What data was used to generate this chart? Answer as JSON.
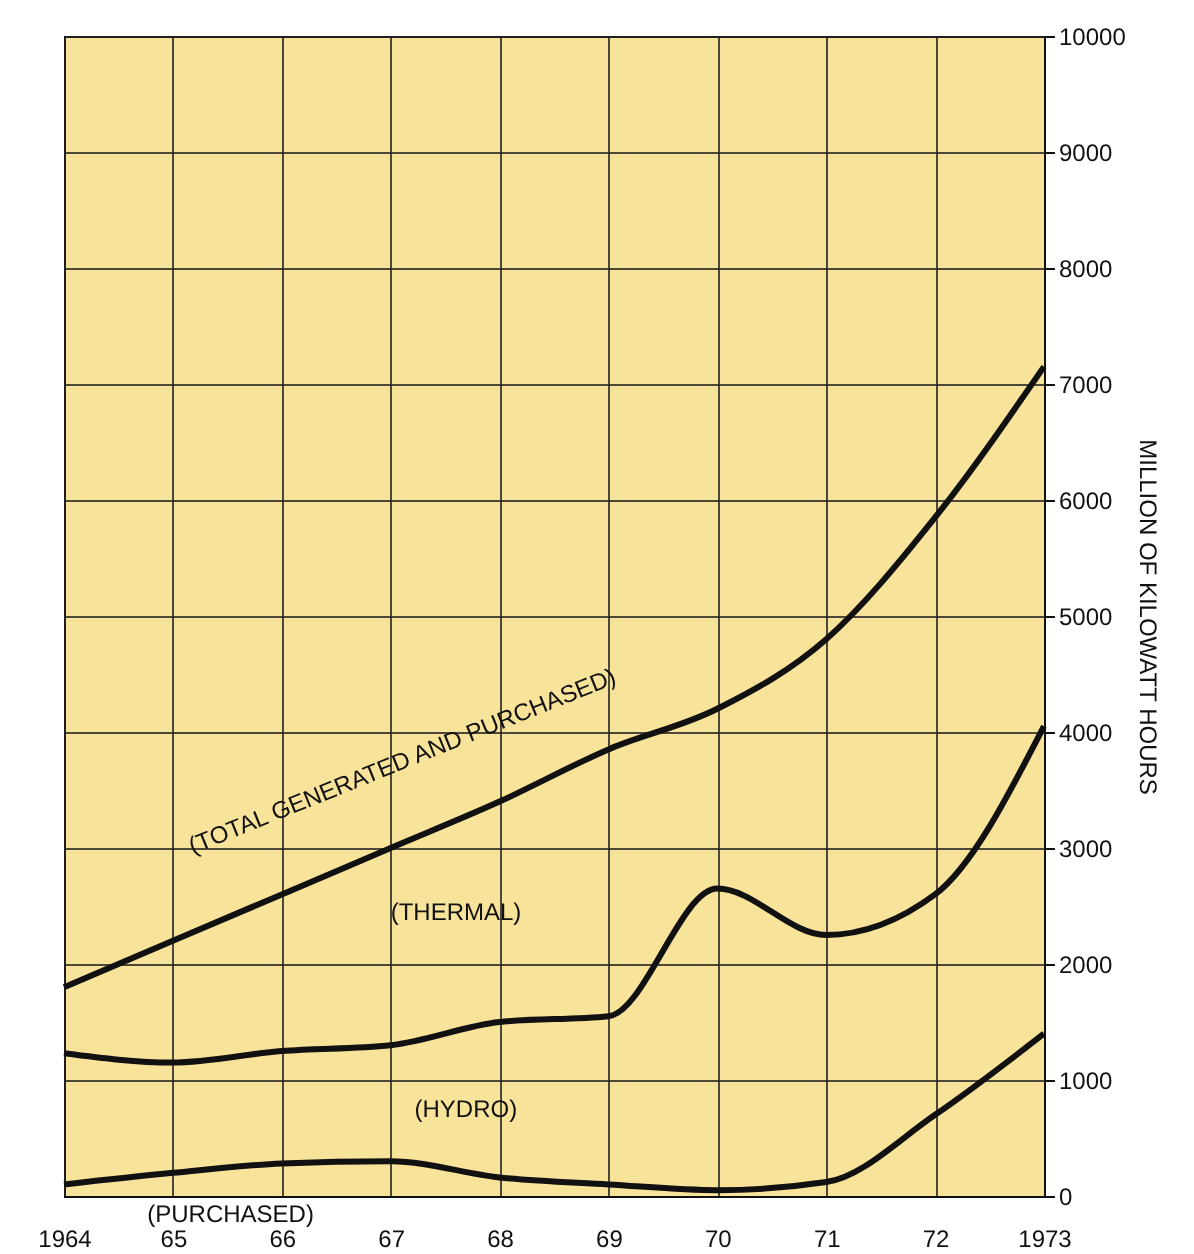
{
  "chart_data": {
    "type": "line",
    "ylabel": "MILLION OF KILOWATT HOURS",
    "x": [
      1964,
      1965,
      1966,
      1967,
      1968,
      1969,
      1970,
      1971,
      1972,
      1973
    ],
    "series": [
      {
        "color": "#111111",
        "values": [
          1800,
          2200,
          2600,
          3000,
          3400,
          3850,
          4200,
          4800,
          5850,
          7150
        ]
      },
      {
        "color": "#111111",
        "values": [
          1230,
          1150,
          1250,
          1300,
          1500,
          1550,
          2650,
          2250,
          2600,
          4050
        ]
      },
      {
        "color": "#111111",
        "values": [
          100,
          200,
          280,
          300,
          160,
          100,
          50,
          120,
          700,
          1400
        ]
      }
    ],
    "annotations": [
      "(TOTAL GENERATED AND PURCHASED)",
      "(THERMAL)",
      "(HYDRO)",
      "(PURCHASED)"
    ],
    "xlim": [
      1964,
      1973
    ],
    "xticks": [
      {
        "value": 1964,
        "label": "1964"
      },
      {
        "value": 1965,
        "label": "65"
      },
      {
        "value": 1966,
        "label": "66"
      },
      {
        "value": 1967,
        "label": "67"
      },
      {
        "value": 1968,
        "label": "68"
      },
      {
        "value": 1969,
        "label": "69"
      },
      {
        "value": 1970,
        "label": "70"
      },
      {
        "value": 1971,
        "label": "71"
      },
      {
        "value": 1972,
        "label": "72"
      },
      {
        "value": 1973,
        "label": "1973"
      }
    ],
    "ylim": [
      0,
      10000
    ],
    "yticks": [
      0,
      1000,
      2000,
      3000,
      4000,
      5000,
      6000,
      7000,
      8000,
      9000,
      10000
    ],
    "grid": true,
    "line_style": "solid"
  }
}
